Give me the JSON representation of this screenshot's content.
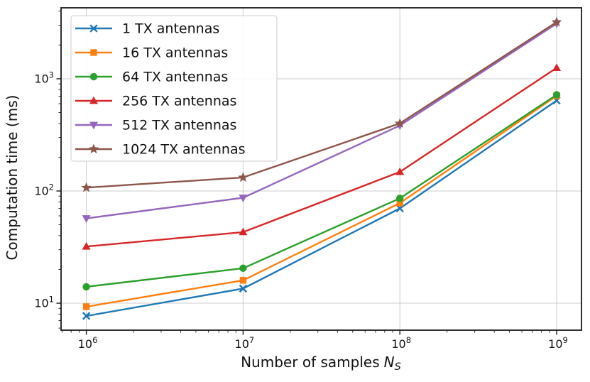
{
  "figure": {
    "background": "#ffffff",
    "text_color": "#111111",
    "spine_color": "#1a1a1a"
  },
  "chart_data": {
    "type": "line",
    "title": "",
    "xlabel_prefix": "Number of samples",
    "xlabel_var": "N",
    "xlabel_sub": "S",
    "ylabel": "Computation time (ms)",
    "xscale": "log",
    "yscale": "log",
    "xlim": [
      690000,
      1440000000
    ],
    "ylim": [
      5.75,
      4290
    ],
    "grid": true,
    "grid_color": "#cccccc",
    "x": [
      1000000,
      10000000,
      100000000,
      1000000000
    ],
    "x_tick_exponents": [
      6,
      7,
      8,
      9
    ],
    "y_tick_exponents": [
      1,
      2,
      3
    ],
    "tick_base": "10",
    "legend": {
      "position": "upper left",
      "border_color": "#cccccc",
      "background": "rgba(255,255,255,0.9)"
    },
    "series": [
      {
        "name": "1 TX antennas",
        "color": "#1f77b4",
        "marker": "x",
        "values": [
          7.7,
          13.5,
          70,
          640
        ]
      },
      {
        "name": "16 TX antennas",
        "color": "#ff7f0e",
        "marker": "square",
        "values": [
          9.3,
          16,
          78,
          705
        ]
      },
      {
        "name": "64 TX antennas",
        "color": "#2ca02c",
        "marker": "circle",
        "values": [
          14,
          20.5,
          86,
          720
        ]
      },
      {
        "name": "256 TX antennas",
        "color": "#d62728",
        "marker": "triangle-up",
        "values": [
          32,
          43,
          148,
          1250
        ]
      },
      {
        "name": "512 TX antennas",
        "color": "#9467bd",
        "marker": "triangle-down",
        "values": [
          57,
          87,
          383,
          3100
        ]
      },
      {
        "name": "1024 TX antennas",
        "color": "#8c564b",
        "marker": "star",
        "values": [
          107,
          132,
          400,
          3200
        ]
      }
    ]
  }
}
